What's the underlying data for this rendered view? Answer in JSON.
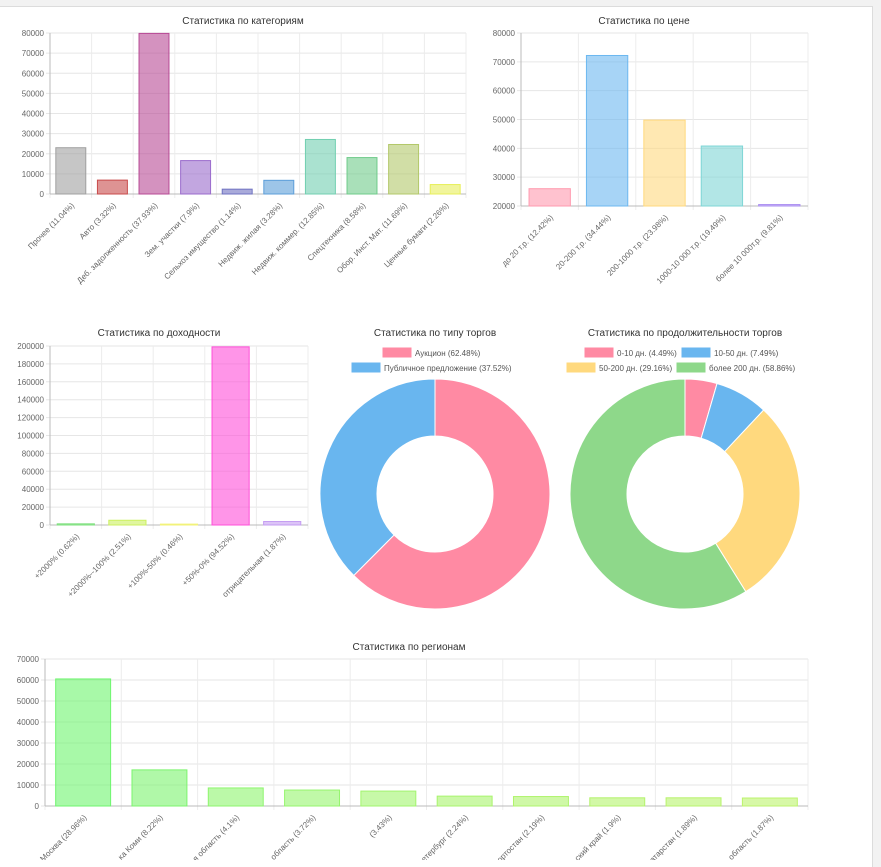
{
  "charts": {
    "categories": {
      "type": "bar",
      "title": "Статистика по категориям",
      "ylim": [
        0,
        80000
      ],
      "yticks": [
        0,
        10000,
        20000,
        30000,
        40000,
        50000,
        60000,
        70000,
        80000
      ],
      "categories": [
        "Прочее (11.04%)",
        "Авто (3.32%)",
        "Деб. задолженность (37.93%)",
        "Зем. участки (7.9%)",
        "Сельхоз имущество (1.14%)",
        "Недвиж. жилая (3.28%)",
        "Недвиж. коммер. (12.85%)",
        "Спецтехника (8.58%)",
        "Обор. Инст. Мат. (11.69%)",
        "Ценные бумаги (2.26%)"
      ],
      "values": [
        23000,
        6900,
        79800,
        16600,
        2400,
        6800,
        27100,
        18100,
        24600,
        4700
      ],
      "colors": [
        "#a0a0a0",
        "#c84b4b",
        "#b74a95",
        "#9a6bcc",
        "#6f72c2",
        "#5c9ed9",
        "#71cfb0",
        "#6fcb8a",
        "#b3c86a",
        "#e8ef5a"
      ]
    },
    "price": {
      "type": "bar",
      "title": "Статистика по цене",
      "ylim": [
        20000,
        80000
      ],
      "yticks": [
        20000,
        30000,
        40000,
        50000,
        60000,
        70000,
        80000
      ],
      "categories": [
        "до 20 т.р. (12.42%)",
        "20-200 т.р. (34.44%)",
        "200-1000 т.р. (23.98%)",
        "1000-10 000 т.р. (19.49%)",
        "более 10 000т.р. (9.81%)"
      ],
      "values": [
        26000,
        72200,
        49800,
        40800,
        20500
      ],
      "colors": [
        "#ff9aaf",
        "#6cb8f0",
        "#ffd97e",
        "#7fd6d6",
        "#ab8ff2"
      ]
    },
    "yield": {
      "type": "bar",
      "title": "Статистика по доходности",
      "ylim": [
        0,
        200000
      ],
      "yticks": [
        0,
        20000,
        40000,
        60000,
        80000,
        100000,
        120000,
        140000,
        160000,
        180000,
        200000
      ],
      "categories": [
        "+2000% (0.62%)",
        "+2000%--100% (2.51%)",
        "+100%-50% (0.46%)",
        "+50%-0% (94.52%)",
        "отрицательная (1.87%)"
      ],
      "values": [
        1300,
        5300,
        1000,
        199000,
        3900
      ],
      "colors": [
        "#7ee07e",
        "#ccf060",
        "#f2f27a",
        "#ff4fd8",
        "#c59df2"
      ]
    },
    "trade_type": {
      "type": "pie",
      "title": "Статистика по типу торгов",
      "labels": [
        "Аукцион (62.48%)",
        "Публичное предложение (37.52%)"
      ],
      "values": [
        62.48,
        37.52
      ],
      "colors": [
        "#ff8aa3",
        "#69b6ef"
      ]
    },
    "duration": {
      "type": "pie",
      "title": "Статистика по продолжительности торгов",
      "labels": [
        "0-10 дн. (4.49%)",
        "10-50 дн. (7.49%)",
        "50-200 дн. (29.16%)",
        "более 200 дн. (58.86%)"
      ],
      "values": [
        4.49,
        7.49,
        29.16,
        58.86
      ],
      "colors": [
        "#ff8aa3",
        "#69b6ef",
        "#ffd97e",
        "#8ed88a"
      ]
    },
    "regions": {
      "type": "bar",
      "title": "Статистика по регионам",
      "ylim": [
        0,
        70000
      ],
      "yticks": [
        0,
        10000,
        20000,
        30000,
        40000,
        50000,
        60000,
        70000
      ],
      "categories": [
        "Москва (28.96%)",
        "ка Коми (8.22%)",
        "я область (4.1%)",
        "область (3.72%)",
        "(3.43%)",
        "етербург (2.24%)",
        "ортостан (2.19%)",
        "ский край (1.9%)",
        "атарстан (1.89%)",
        "область (1.87%)"
      ],
      "values": [
        60500,
        17200,
        8600,
        7600,
        7100,
        4700,
        4500,
        3900,
        3900,
        3800
      ],
      "colors": [
        "#6ef56e",
        "#7cf46e",
        "#8ef56e",
        "#96f56e",
        "#a2f56e",
        "#a8f46c",
        "#aff46c",
        "#b4f36c",
        "#b8f36c",
        "#bcf36c"
      ]
    }
  }
}
